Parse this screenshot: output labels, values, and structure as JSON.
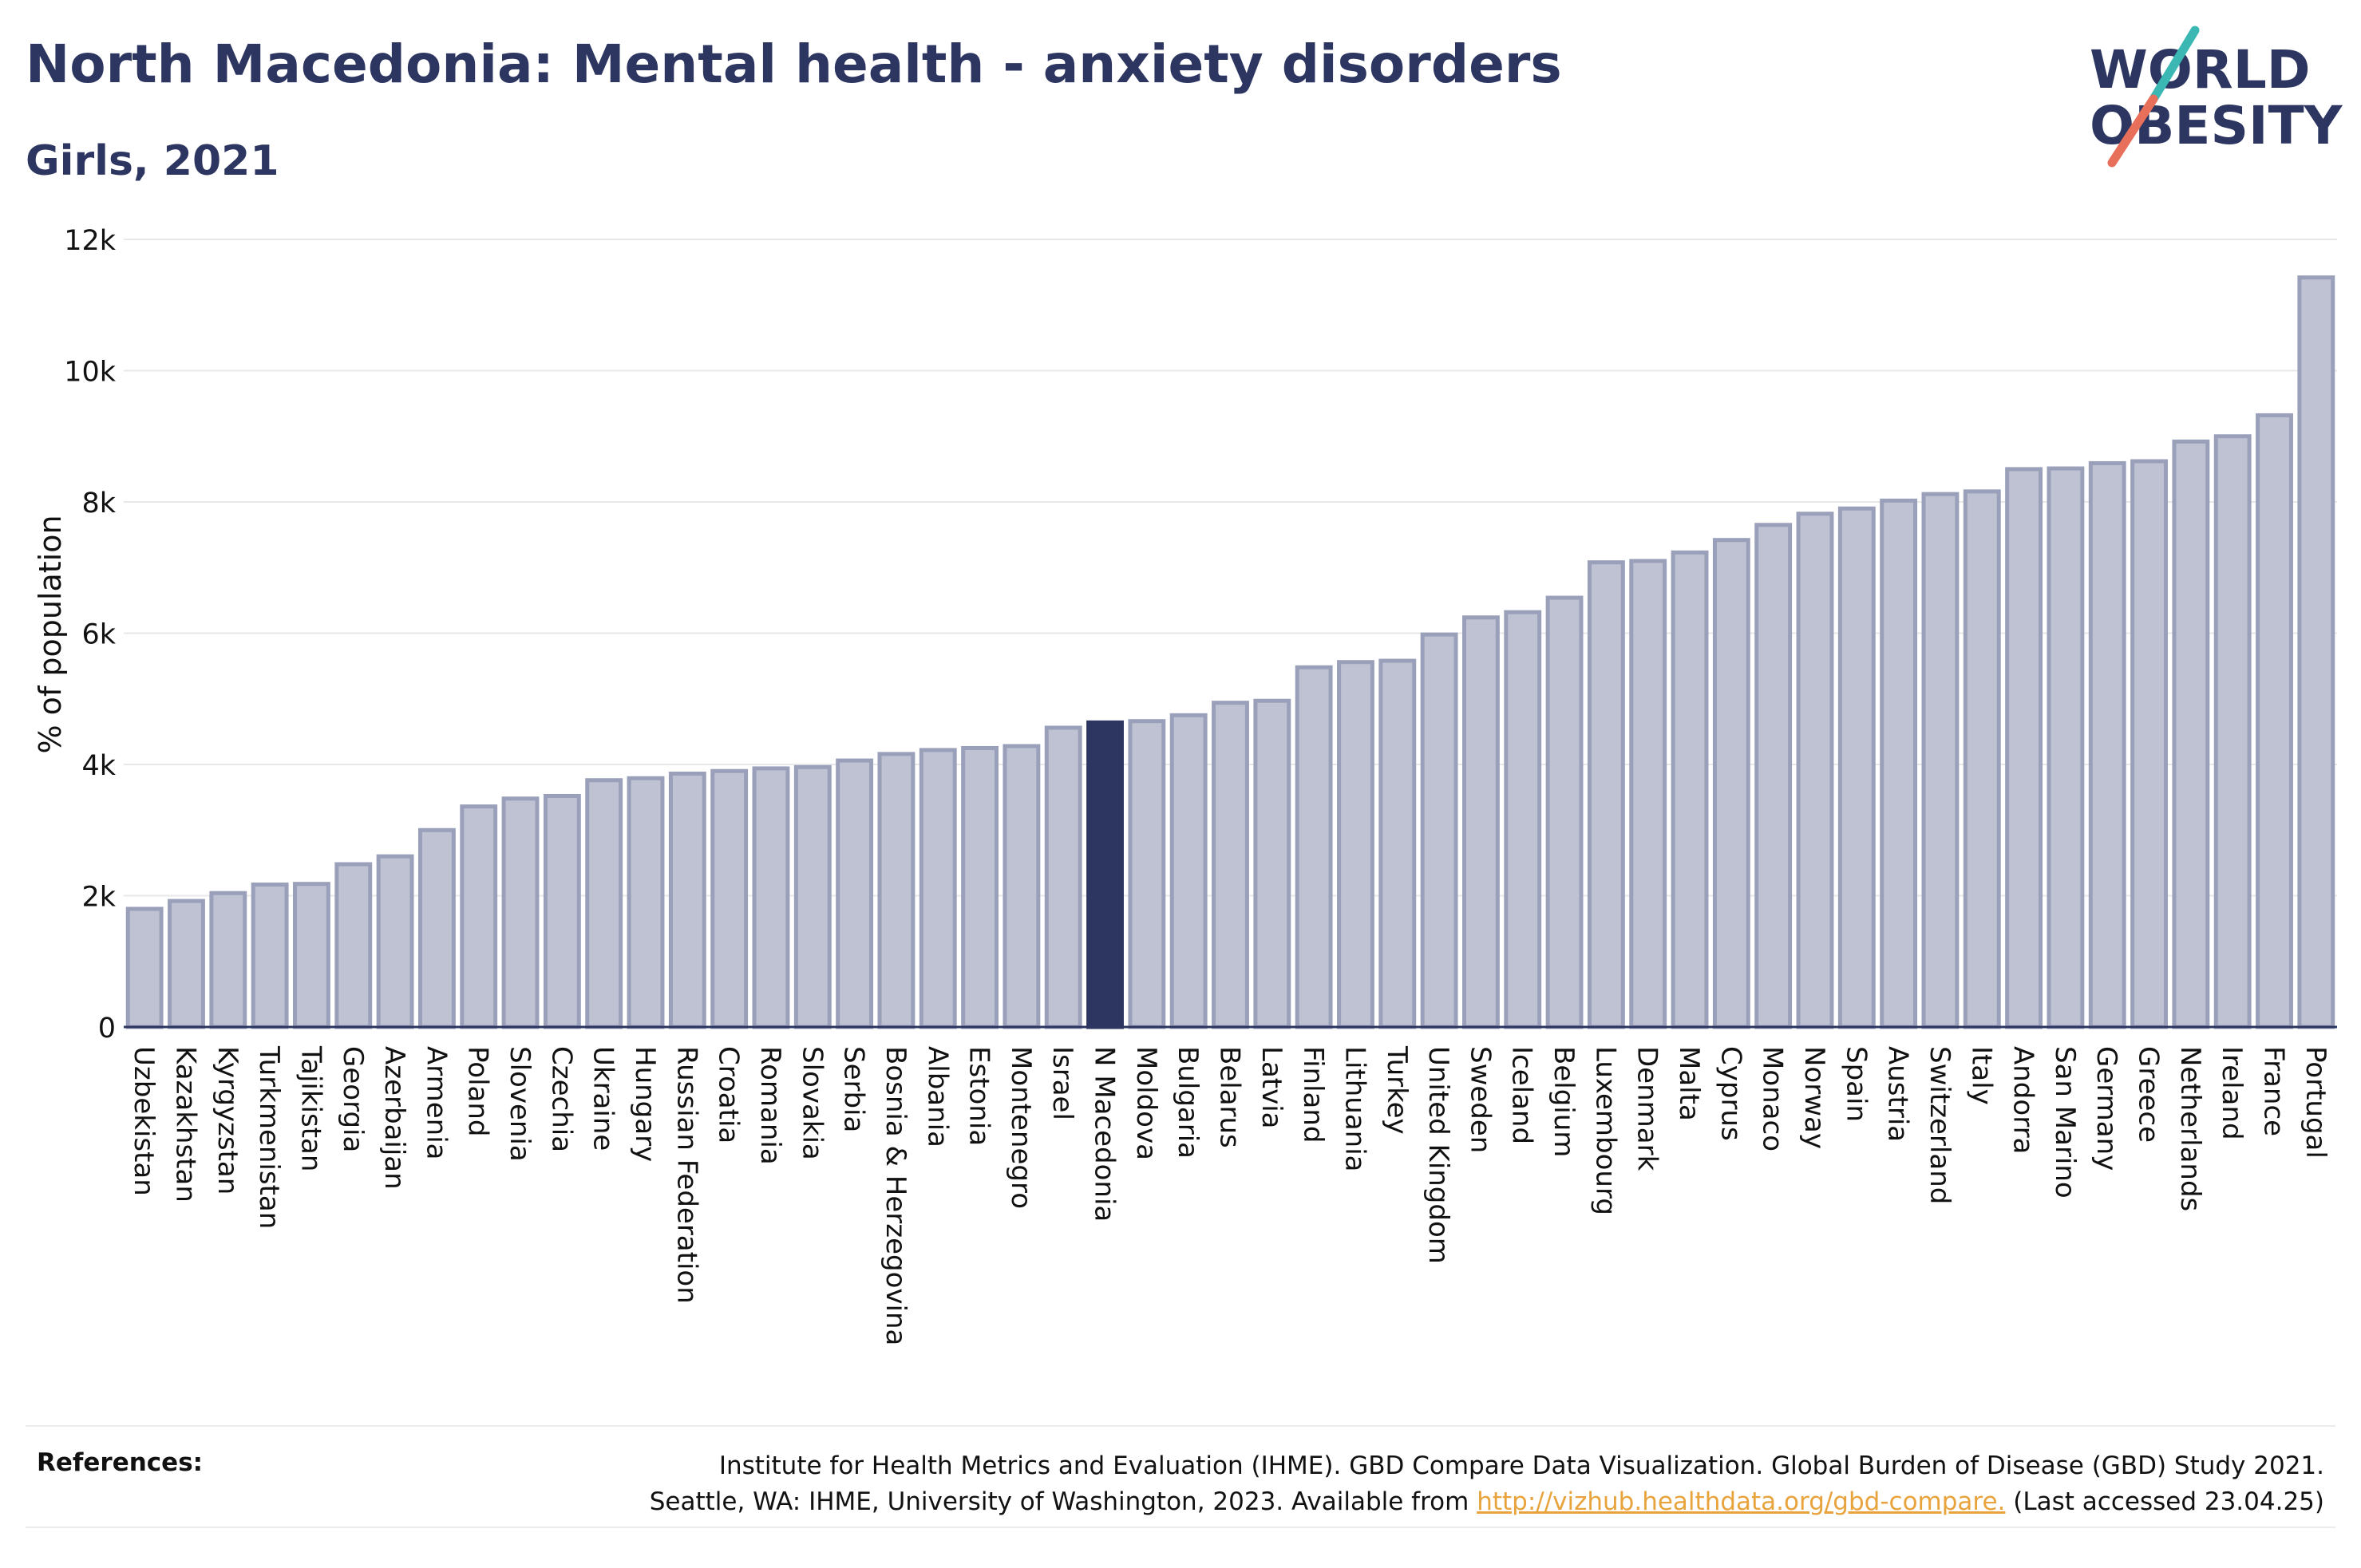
{
  "title": "North Macedonia: Mental health - anxiety disorders",
  "subtitle": "Girls, 2021",
  "logo": {
    "line1": "WORLD",
    "line2": "OBESITY"
  },
  "colors": {
    "highlight": "#2d3561",
    "bar_fill": "#bec2d2",
    "bar_stroke": "#9aa0b9",
    "accent_teal": "#3bb8b3",
    "accent_coral": "#e8705a",
    "link": "#e8a33c"
  },
  "chart_data": {
    "type": "bar",
    "ylabel": "% of population",
    "ylim": [
      0,
      12000
    ],
    "yticks": [
      0,
      2000,
      4000,
      6000,
      8000,
      10000,
      12000
    ],
    "ytick_labels": [
      "0",
      "2k",
      "4k",
      "6k",
      "8k",
      "10k",
      "12k"
    ],
    "grid": true,
    "highlight": "N Macedonia",
    "categories": [
      "Uzbekistan",
      "Kazakhstan",
      "Kyrgyzstan",
      "Turkmenistan",
      "Tajikistan",
      "Georgia",
      "Azerbaijan",
      "Armenia",
      "Poland",
      "Slovenia",
      "Czechia",
      "Ukraine",
      "Hungary",
      "Russian Federation",
      "Croatia",
      "Romania",
      "Slovakia",
      "Serbia",
      "Bosnia & Herzegovina",
      "Albania",
      "Estonia",
      "Montenegro",
      "Israel",
      "N Macedonia",
      "Moldova",
      "Bulgaria",
      "Belarus",
      "Latvia",
      "Finland",
      "Lithuania",
      "Turkey",
      "United Kingdom",
      "Sweden",
      "Iceland",
      "Belgium",
      "Luxembourg",
      "Denmark",
      "Malta",
      "Cyprus",
      "Monaco",
      "Norway",
      "Spain",
      "Austria",
      "Switzerland",
      "Italy",
      "Andorra",
      "San Marino",
      "Germany",
      "Greece",
      "Netherlands",
      "Ireland",
      "France",
      "Portugal"
    ],
    "values": [
      1800,
      1920,
      2040,
      2170,
      2180,
      2480,
      2600,
      3000,
      3360,
      3480,
      3520,
      3760,
      3790,
      3860,
      3900,
      3940,
      3960,
      4060,
      4160,
      4220,
      4250,
      4280,
      4560,
      4640,
      4660,
      4750,
      4940,
      4970,
      5480,
      5560,
      5580,
      5980,
      6240,
      6320,
      6540,
      7080,
      7100,
      7230,
      7420,
      7650,
      7820,
      7900,
      8020,
      8120,
      8160,
      8500,
      8510,
      8590,
      8620,
      8920,
      9000,
      9320,
      11420
    ]
  },
  "references": {
    "label": "References:",
    "line1": "Institute for Health Metrics and Evaluation (IHME). GBD Compare Data Visualization. Global Burden of Disease (GBD) Study 2021.",
    "line2_pre": "Seattle, WA: IHME, University of Washington, 2023. Available from ",
    "link": "http://vizhub.healthdata.org/gbd-compare.",
    "line2_post": " (Last accessed 23.04.25)"
  }
}
